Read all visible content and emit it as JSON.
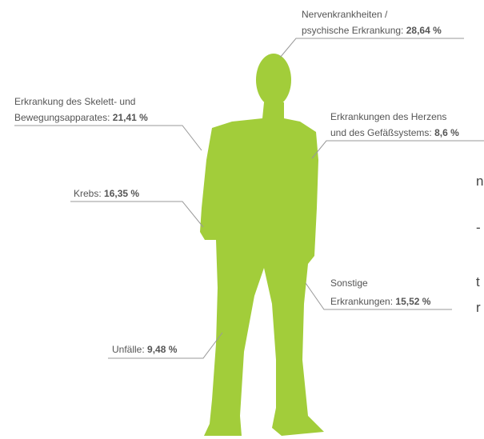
{
  "labels": [
    {
      "text": [
        "Nervenkrankheiten /",
        "psychische Erkrankung: "
      ],
      "value": "28,64 %"
    },
    {
      "text": [
        "Erkrankung des Skelett- und",
        "Bewegungsapparates: "
      ],
      "value": "21,41 %"
    },
    {
      "text": [
        "Erkrankungen des Herzens",
        "und des Gefäßsystems: "
      ],
      "value": "8,6 %"
    },
    {
      "text": [
        "Krebs: "
      ],
      "value": "16,35 %"
    },
    {
      "text": [
        "Sonstige",
        "Erkrankungen: "
      ],
      "value": "15,52 %"
    },
    {
      "text": [
        "Unfälle: "
      ],
      "value": "9,48 %"
    }
  ],
  "cropped_text": [
    "n",
    "-",
    "t",
    "r"
  ]
}
